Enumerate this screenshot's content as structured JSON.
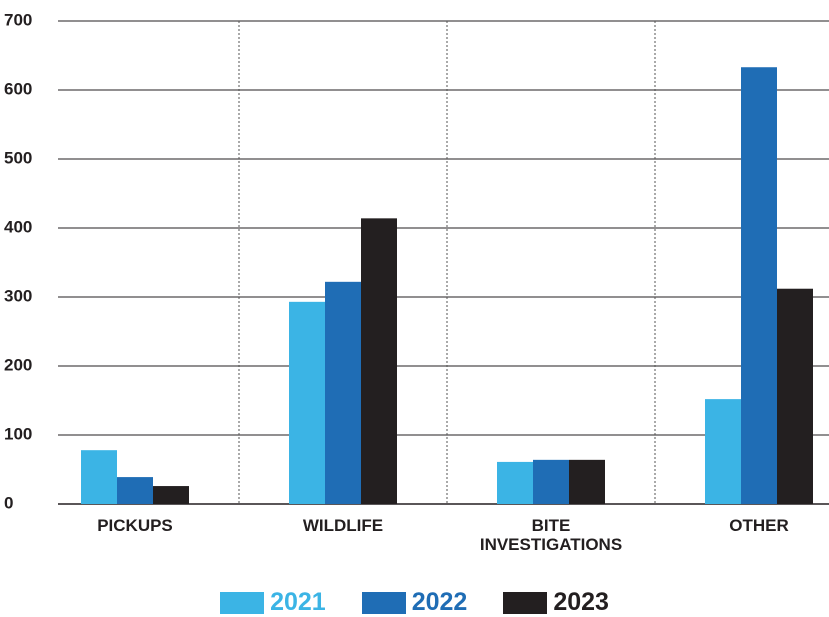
{
  "chart_data": {
    "type": "bar",
    "categories": [
      "PICKUPS",
      "WILDLIFE",
      "BITE INVESTIGATIONS",
      "OTHER"
    ],
    "series": [
      {
        "name": "2021",
        "color": "#3bb4e5",
        "values": [
          78,
          293,
          61,
          152
        ]
      },
      {
        "name": "2022",
        "color": "#1f6db5",
        "values": [
          39,
          322,
          64,
          633
        ]
      },
      {
        "name": "2023",
        "color": "#231f20",
        "values": [
          26,
          414,
          64,
          312
        ]
      }
    ],
    "ylim": [
      0,
      700
    ],
    "yticks": [
      0,
      100,
      200,
      300,
      400,
      500,
      600,
      700
    ],
    "grid": true
  }
}
